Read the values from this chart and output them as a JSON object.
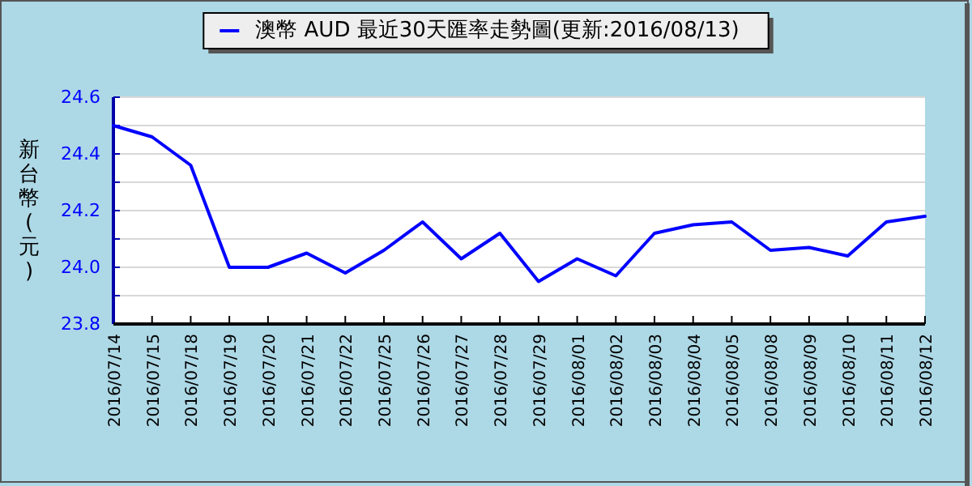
{
  "chart_data": {
    "type": "line",
    "ylabel": "新台幣(元)",
    "categories": [
      "2016/07/14",
      "2016/07/15",
      "2016/07/18",
      "2016/07/19",
      "2016/07/20",
      "2016/07/21",
      "2016/07/22",
      "2016/07/25",
      "2016/07/26",
      "2016/07/27",
      "2016/07/28",
      "2016/07/29",
      "2016/08/01",
      "2016/08/02",
      "2016/08/03",
      "2016/08/04",
      "2016/08/05",
      "2016/08/08",
      "2016/08/09",
      "2016/08/10",
      "2016/08/11",
      "2016/08/12"
    ],
    "series": [
      {
        "name": "澳幣 AUD 最近30天匯率走勢圖(更新:2016/08/13)",
        "color": "#0000ff",
        "values": [
          24.5,
          24.46,
          24.36,
          24.0,
          24.0,
          24.05,
          23.98,
          24.06,
          24.16,
          24.03,
          24.12,
          23.95,
          24.03,
          23.97,
          24.12,
          24.15,
          24.16,
          24.06,
          24.07,
          24.04,
          24.16,
          24.18
        ]
      }
    ],
    "ylim": [
      23.8,
      24.6
    ],
    "yticks": [
      {
        "value": 23.8,
        "label": "23.8"
      },
      {
        "value": 23.9,
        "label": null
      },
      {
        "value": 24.0,
        "label": "24.0"
      },
      {
        "value": 24.1,
        "label": null
      },
      {
        "value": 24.2,
        "label": "24.2"
      },
      {
        "value": 24.3,
        "label": null
      },
      {
        "value": 24.4,
        "label": "24.4"
      },
      {
        "value": 24.5,
        "label": null
      },
      {
        "value": 24.6,
        "label": "24.6"
      }
    ],
    "grid": "y",
    "legend": "top",
    "marker": "none",
    "line_style": "solid"
  }
}
